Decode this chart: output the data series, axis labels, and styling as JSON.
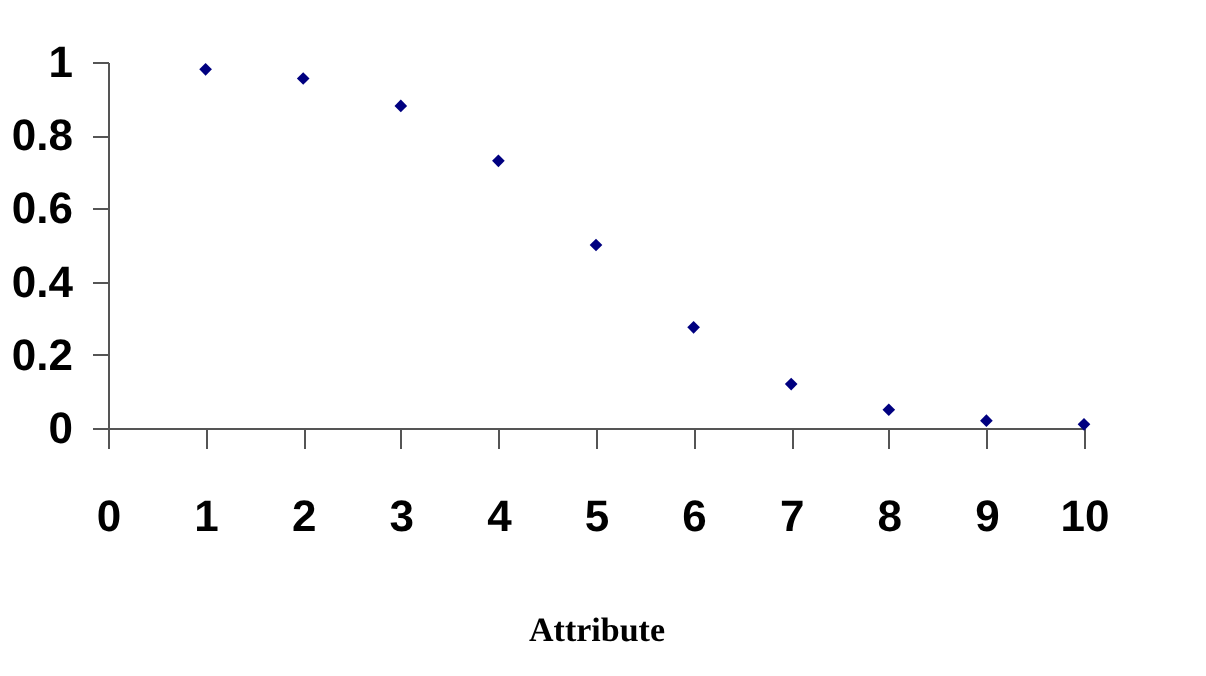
{
  "chart_data": {
    "type": "scatter",
    "xlabel": "Attribute",
    "x": [
      1,
      2,
      3,
      4,
      5,
      6,
      7,
      8,
      9,
      10
    ],
    "series": [
      {
        "color": "#000080",
        "values": [
          0.98,
          0.955,
          0.88,
          0.73,
          0.5,
          0.275,
          0.12,
          0.05,
          0.02,
          0.01
        ]
      }
    ],
    "xlim": [
      0,
      10
    ],
    "xticks": [
      0,
      1,
      2,
      3,
      4,
      5,
      6,
      7,
      8,
      9,
      10
    ],
    "ylim": [
      0,
      1
    ],
    "yticks": [
      0,
      0.2,
      0.4,
      0.6,
      0.8,
      1
    ],
    "grid": false,
    "marker": "diamond"
  }
}
